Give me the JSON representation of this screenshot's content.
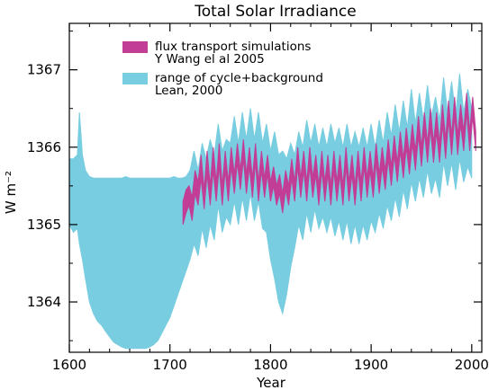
{
  "chart_data": {
    "type": "area",
    "title": "Total Solar Irradiance",
    "xlabel": "Year",
    "ylabel": "W m⁻²",
    "xlim": [
      1600,
      2010
    ],
    "ylim": [
      1363.35,
      1367.6
    ],
    "xticks": [
      "1600",
      "1700",
      "1800",
      "1900",
      "2000"
    ],
    "xtick_values": [
      1600,
      1700,
      1800,
      1900,
      2000
    ],
    "yticks": [
      "1364",
      "1365",
      "1366",
      "1367"
    ],
    "ytick_values": [
      1364,
      1365,
      1366,
      1367
    ],
    "grid": false,
    "legend_position": "top-left",
    "series": [
      {
        "name_lines": [
          "range of cycle+background",
          "Lean, 2000"
        ],
        "kind": "range-band",
        "color": "#78cde0",
        "x": [
          1600,
          1604,
          1608,
          1610,
          1613,
          1616,
          1620,
          1624,
          1628,
          1632,
          1636,
          1640,
          1644,
          1648,
          1652,
          1656,
          1660,
          1664,
          1668,
          1672,
          1676,
          1680,
          1684,
          1688,
          1692,
          1696,
          1700,
          1704,
          1708,
          1712,
          1716,
          1720,
          1724,
          1728,
          1732,
          1736,
          1740,
          1744,
          1748,
          1752,
          1756,
          1760,
          1764,
          1768,
          1772,
          1776,
          1780,
          1784,
          1788,
          1792,
          1796,
          1800,
          1804,
          1808,
          1812,
          1816,
          1820,
          1824,
          1828,
          1832,
          1836,
          1840,
          1844,
          1848,
          1852,
          1856,
          1860,
          1864,
          1868,
          1872,
          1876,
          1880,
          1884,
          1888,
          1892,
          1896,
          1900,
          1904,
          1908,
          1912,
          1916,
          1920,
          1924,
          1928,
          1932,
          1936,
          1940,
          1944,
          1948,
          1952,
          1956,
          1960,
          1964,
          1968,
          1972,
          1976,
          1980,
          1984,
          1988,
          1992,
          1996,
          2000
        ],
        "upper": [
          1365.85,
          1365.85,
          1365.9,
          1366.45,
          1365.9,
          1365.7,
          1365.62,
          1365.6,
          1365.6,
          1365.6,
          1365.6,
          1365.6,
          1365.6,
          1365.6,
          1365.6,
          1365.62,
          1365.6,
          1365.6,
          1365.6,
          1365.6,
          1365.6,
          1365.6,
          1365.6,
          1365.6,
          1365.6,
          1365.6,
          1365.6,
          1365.62,
          1365.6,
          1365.6,
          1365.62,
          1365.7,
          1365.95,
          1365.7,
          1366.05,
          1365.85,
          1366.1,
          1365.9,
          1366.3,
          1365.95,
          1366.1,
          1366.05,
          1366.4,
          1366.05,
          1366.45,
          1366.1,
          1366.5,
          1366.1,
          1366.45,
          1366.05,
          1366.3,
          1365.95,
          1366.2,
          1365.9,
          1365.95,
          1365.85,
          1366.05,
          1365.9,
          1366.2,
          1366.0,
          1366.35,
          1366.05,
          1366.3,
          1366.0,
          1366.25,
          1366.0,
          1366.3,
          1366.05,
          1366.25,
          1366.0,
          1366.3,
          1366.0,
          1366.2,
          1366.0,
          1366.25,
          1366.0,
          1366.3,
          1366.0,
          1366.35,
          1366.05,
          1366.45,
          1366.15,
          1366.55,
          1366.2,
          1366.6,
          1366.25,
          1366.75,
          1366.3,
          1366.7,
          1366.35,
          1366.8,
          1366.4,
          1366.65,
          1366.35,
          1366.9,
          1366.45,
          1366.85,
          1366.4,
          1366.95,
          1366.45,
          1366.75,
          1366.5
        ],
        "lower": [
          1365.0,
          1364.9,
          1364.95,
          1364.75,
          1364.55,
          1364.3,
          1364.0,
          1363.85,
          1363.75,
          1363.7,
          1363.62,
          1363.55,
          1363.48,
          1363.45,
          1363.42,
          1363.4,
          1363.4,
          1363.4,
          1363.4,
          1363.4,
          1363.4,
          1363.42,
          1363.45,
          1363.5,
          1363.6,
          1363.7,
          1363.8,
          1363.95,
          1364.1,
          1364.25,
          1364.4,
          1364.55,
          1364.75,
          1364.6,
          1364.95,
          1364.7,
          1365.0,
          1364.8,
          1365.25,
          1364.9,
          1365.1,
          1365.0,
          1365.3,
          1365.0,
          1365.35,
          1365.05,
          1365.4,
          1365.05,
          1365.3,
          1364.95,
          1364.9,
          1364.55,
          1364.3,
          1364.0,
          1363.85,
          1364.1,
          1364.45,
          1364.7,
          1365.0,
          1364.8,
          1365.15,
          1364.9,
          1365.2,
          1364.95,
          1365.1,
          1364.9,
          1365.1,
          1364.85,
          1365.05,
          1364.8,
          1365.05,
          1364.75,
          1365.0,
          1364.75,
          1365.0,
          1364.8,
          1365.05,
          1364.9,
          1365.15,
          1364.95,
          1365.25,
          1365.05,
          1365.35,
          1365.1,
          1365.45,
          1365.2,
          1365.55,
          1365.3,
          1365.6,
          1365.35,
          1365.7,
          1365.4,
          1365.6,
          1365.35,
          1365.8,
          1365.5,
          1365.8,
          1365.45,
          1365.85,
          1365.55,
          1365.75,
          1365.6
        ]
      },
      {
        "name_lines": [
          "flux transport simulations",
          "Y Wang el al  2005"
        ],
        "kind": "range-band",
        "color": "#c23d96",
        "x": [
          1713,
          1716,
          1719,
          1722,
          1725,
          1728,
          1731,
          1734,
          1737,
          1740,
          1743,
          1746,
          1749,
          1752,
          1755,
          1758,
          1761,
          1764,
          1767,
          1770,
          1773,
          1776,
          1779,
          1782,
          1785,
          1788,
          1791,
          1794,
          1797,
          1800,
          1803,
          1806,
          1809,
          1812,
          1815,
          1818,
          1821,
          1824,
          1827,
          1830,
          1833,
          1836,
          1839,
          1842,
          1845,
          1848,
          1851,
          1854,
          1857,
          1860,
          1863,
          1866,
          1869,
          1872,
          1875,
          1878,
          1881,
          1884,
          1887,
          1890,
          1893,
          1896,
          1899,
          1902,
          1905,
          1908,
          1911,
          1914,
          1917,
          1920,
          1923,
          1926,
          1929,
          1932,
          1935,
          1938,
          1941,
          1944,
          1947,
          1950,
          1953,
          1956,
          1959,
          1962,
          1965,
          1968,
          1971,
          1974,
          1977,
          1980,
          1983,
          1986,
          1989,
          1992,
          1995,
          1998,
          2001,
          2004
        ],
        "upper": [
          1365.3,
          1365.45,
          1365.5,
          1365.35,
          1365.7,
          1365.55,
          1365.9,
          1365.45,
          1365.95,
          1365.5,
          1366.0,
          1365.55,
          1366.05,
          1365.5,
          1365.95,
          1365.55,
          1366.0,
          1365.65,
          1366.05,
          1365.7,
          1366.1,
          1365.65,
          1366.0,
          1365.6,
          1366.05,
          1365.55,
          1365.95,
          1365.6,
          1365.9,
          1365.55,
          1365.75,
          1365.5,
          1365.65,
          1365.4,
          1365.7,
          1365.5,
          1365.85,
          1365.55,
          1366.0,
          1365.6,
          1365.95,
          1365.55,
          1366.0,
          1365.6,
          1365.9,
          1365.5,
          1365.95,
          1365.55,
          1365.9,
          1365.5,
          1365.95,
          1365.55,
          1365.9,
          1365.5,
          1366.0,
          1365.55,
          1365.9,
          1365.5,
          1365.95,
          1365.55,
          1366.0,
          1365.6,
          1365.95,
          1365.6,
          1366.05,
          1365.65,
          1366.0,
          1365.7,
          1366.1,
          1365.75,
          1366.15,
          1365.8,
          1366.2,
          1365.85,
          1366.25,
          1365.9,
          1366.3,
          1365.95,
          1366.4,
          1366.0,
          1366.45,
          1366.05,
          1366.5,
          1366.05,
          1366.45,
          1366.05,
          1366.55,
          1366.1,
          1366.6,
          1366.15,
          1366.65,
          1366.15,
          1366.55,
          1366.2,
          1366.7,
          1366.2,
          1366.65,
          1366.2
        ],
        "lower": [
          1365.0,
          1365.15,
          1365.25,
          1365.05,
          1365.4,
          1365.25,
          1365.6,
          1365.2,
          1365.65,
          1365.25,
          1365.7,
          1365.3,
          1365.75,
          1365.25,
          1365.7,
          1365.3,
          1365.75,
          1365.4,
          1365.8,
          1365.45,
          1365.85,
          1365.4,
          1365.75,
          1365.35,
          1365.8,
          1365.3,
          1365.7,
          1365.35,
          1365.65,
          1365.3,
          1365.5,
          1365.25,
          1365.4,
          1365.15,
          1365.45,
          1365.25,
          1365.6,
          1365.3,
          1365.75,
          1365.35,
          1365.7,
          1365.3,
          1365.75,
          1365.35,
          1365.65,
          1365.25,
          1365.7,
          1365.3,
          1365.65,
          1365.25,
          1365.7,
          1365.3,
          1365.65,
          1365.25,
          1365.75,
          1365.3,
          1365.65,
          1365.25,
          1365.7,
          1365.3,
          1365.75,
          1365.35,
          1365.7,
          1365.35,
          1365.8,
          1365.4,
          1365.75,
          1365.45,
          1365.85,
          1365.5,
          1365.9,
          1365.55,
          1365.95,
          1365.6,
          1366.0,
          1365.65,
          1366.05,
          1365.7,
          1366.15,
          1365.75,
          1366.2,
          1365.8,
          1366.25,
          1365.8,
          1366.2,
          1365.8,
          1366.3,
          1365.85,
          1366.35,
          1365.9,
          1366.4,
          1365.9,
          1366.3,
          1365.95,
          1366.45,
          1365.95,
          1366.4,
          1365.95
        ]
      }
    ]
  }
}
